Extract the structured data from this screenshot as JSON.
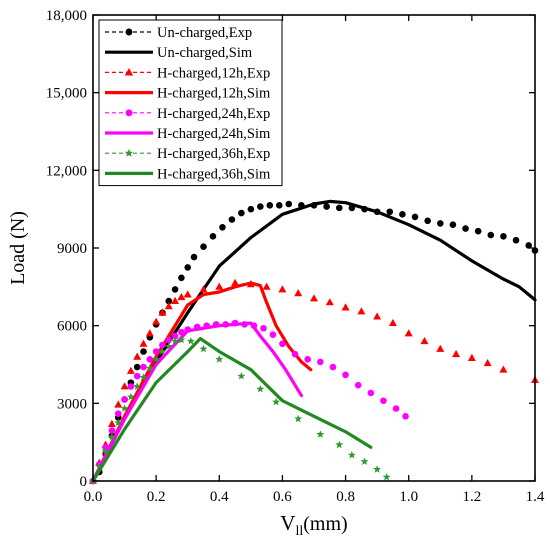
{
  "chart_data": {
    "type": "line",
    "xlabel": "V",
    "xlabel_subscript": "ll",
    "xlabel_unit": "(mm)",
    "ylabel": "Load (N)",
    "xlim": [
      0,
      1.4
    ],
    "ylim": [
      0,
      18000
    ],
    "xticks": [
      0.0,
      0.2,
      0.4,
      0.6,
      0.8,
      1.0,
      1.2,
      1.4
    ],
    "xtick_labels": [
      "0.0",
      "0.2",
      "0.4",
      "0.6",
      "0.8",
      "1.0",
      "1.2",
      "1.4"
    ],
    "yticks": [
      0,
      3000,
      6000,
      9000,
      12000,
      15000,
      18000
    ],
    "ytick_labels": [
      "0",
      "3000",
      "6000",
      "9000",
      "12,000",
      "15,000",
      "18,000"
    ],
    "grid": false,
    "legend_position": "top-left",
    "series": [
      {
        "name": "Un-charged,Exp",
        "kind": "exp",
        "marker": "circle",
        "color": "#000000",
        "points": [
          [
            0.0,
            0
          ],
          [
            0.02,
            350
          ],
          [
            0.04,
            1050
          ],
          [
            0.06,
            1750
          ],
          [
            0.08,
            2450
          ],
          [
            0.1,
            3150
          ],
          [
            0.12,
            3800
          ],
          [
            0.14,
            4400
          ],
          [
            0.16,
            5000
          ],
          [
            0.18,
            5550
          ],
          [
            0.2,
            6050
          ],
          [
            0.22,
            6500
          ],
          [
            0.24,
            6950
          ],
          [
            0.26,
            7400
          ],
          [
            0.28,
            7850
          ],
          [
            0.3,
            8250
          ],
          [
            0.32,
            8650
          ],
          [
            0.35,
            9050
          ],
          [
            0.38,
            9450
          ],
          [
            0.41,
            9800
          ],
          [
            0.44,
            10100
          ],
          [
            0.47,
            10350
          ],
          [
            0.5,
            10500
          ],
          [
            0.53,
            10600
          ],
          [
            0.56,
            10650
          ],
          [
            0.59,
            10650
          ],
          [
            0.62,
            10700
          ],
          [
            0.66,
            10650
          ],
          [
            0.7,
            10650
          ],
          [
            0.74,
            10600
          ],
          [
            0.78,
            10550
          ],
          [
            0.82,
            10550
          ],
          [
            0.86,
            10500
          ],
          [
            0.9,
            10400
          ],
          [
            0.94,
            10400
          ],
          [
            0.98,
            10300
          ],
          [
            1.02,
            10200
          ],
          [
            1.06,
            10050
          ],
          [
            1.1,
            9950
          ],
          [
            1.14,
            9900
          ],
          [
            1.18,
            9750
          ],
          [
            1.22,
            9650
          ],
          [
            1.26,
            9500
          ],
          [
            1.3,
            9450
          ],
          [
            1.34,
            9300
          ],
          [
            1.38,
            9100
          ],
          [
            1.4,
            8900
          ]
        ]
      },
      {
        "name": "Un-charged,Sim",
        "kind": "sim",
        "color": "#000000",
        "points": [
          [
            0.0,
            0
          ],
          [
            0.1,
            2400
          ],
          [
            0.2,
            4600
          ],
          [
            0.3,
            6500
          ],
          [
            0.4,
            8300
          ],
          [
            0.5,
            9400
          ],
          [
            0.6,
            10300
          ],
          [
            0.7,
            10700
          ],
          [
            0.75,
            10800
          ],
          [
            0.8,
            10750
          ],
          [
            0.9,
            10400
          ],
          [
            1.0,
            9900
          ],
          [
            1.1,
            9300
          ],
          [
            1.2,
            8500
          ],
          [
            1.3,
            7800
          ],
          [
            1.35,
            7500
          ],
          [
            1.38,
            7200
          ],
          [
            1.4,
            7000
          ]
        ]
      },
      {
        "name": "H-charged,12h,Exp",
        "kind": "exp",
        "marker": "triangle",
        "color": "#ff0000",
        "points": [
          [
            0.0,
            0
          ],
          [
            0.02,
            700
          ],
          [
            0.04,
            1400
          ],
          [
            0.06,
            2200
          ],
          [
            0.08,
            2950
          ],
          [
            0.1,
            3650
          ],
          [
            0.12,
            4250
          ],
          [
            0.14,
            4800
          ],
          [
            0.16,
            5300
          ],
          [
            0.18,
            5700
          ],
          [
            0.2,
            6150
          ],
          [
            0.22,
            6500
          ],
          [
            0.24,
            6750
          ],
          [
            0.26,
            6950
          ],
          [
            0.28,
            7100
          ],
          [
            0.3,
            7200
          ],
          [
            0.35,
            7400
          ],
          [
            0.4,
            7500
          ],
          [
            0.45,
            7650
          ],
          [
            0.5,
            7600
          ],
          [
            0.55,
            7500
          ],
          [
            0.6,
            7400
          ],
          [
            0.65,
            7250
          ],
          [
            0.7,
            7050
          ],
          [
            0.75,
            6900
          ],
          [
            0.8,
            6700
          ],
          [
            0.85,
            6550
          ],
          [
            0.9,
            6350
          ],
          [
            0.95,
            6100
          ],
          [
            1.0,
            5700
          ],
          [
            1.05,
            5400
          ],
          [
            1.1,
            5100
          ],
          [
            1.15,
            4900
          ],
          [
            1.2,
            4750
          ],
          [
            1.25,
            4550
          ],
          [
            1.3,
            4300
          ],
          [
            1.4,
            3900
          ]
        ]
      },
      {
        "name": "H-charged,12h,Sim",
        "kind": "sim",
        "color": "#ff0000",
        "points": [
          [
            0.0,
            0
          ],
          [
            0.1,
            2500
          ],
          [
            0.2,
            4800
          ],
          [
            0.3,
            6800
          ],
          [
            0.35,
            7200
          ],
          [
            0.4,
            7300
          ],
          [
            0.45,
            7500
          ],
          [
            0.5,
            7650
          ],
          [
            0.53,
            7550
          ],
          [
            0.55,
            6900
          ],
          [
            0.58,
            6000
          ],
          [
            0.62,
            5200
          ],
          [
            0.66,
            4600
          ],
          [
            0.69,
            4300
          ]
        ]
      },
      {
        "name": "H-charged,24h,Exp",
        "kind": "exp",
        "marker": "circle",
        "color": "#ff00ff",
        "points": [
          [
            0.0,
            0
          ],
          [
            0.02,
            650
          ],
          [
            0.04,
            1300
          ],
          [
            0.06,
            1950
          ],
          [
            0.08,
            2600
          ],
          [
            0.1,
            3150
          ],
          [
            0.12,
            3650
          ],
          [
            0.14,
            4050
          ],
          [
            0.16,
            4400
          ],
          [
            0.18,
            4700
          ],
          [
            0.2,
            5000
          ],
          [
            0.22,
            5250
          ],
          [
            0.24,
            5450
          ],
          [
            0.26,
            5600
          ],
          [
            0.28,
            5750
          ],
          [
            0.3,
            5850
          ],
          [
            0.33,
            5950
          ],
          [
            0.36,
            6000
          ],
          [
            0.39,
            6050
          ],
          [
            0.42,
            6050
          ],
          [
            0.45,
            6100
          ],
          [
            0.48,
            6050
          ],
          [
            0.51,
            6000
          ],
          [
            0.54,
            5900
          ],
          [
            0.57,
            5650
          ],
          [
            0.6,
            5300
          ],
          [
            0.64,
            4900
          ],
          [
            0.68,
            4700
          ],
          [
            0.72,
            4600
          ],
          [
            0.76,
            4400
          ],
          [
            0.8,
            4100
          ],
          [
            0.84,
            3700
          ],
          [
            0.88,
            3400
          ],
          [
            0.92,
            3100
          ],
          [
            0.96,
            2800
          ],
          [
            0.99,
            2500
          ]
        ]
      },
      {
        "name": "H-charged,24h,Sim",
        "kind": "sim",
        "color": "#ff00ff",
        "points": [
          [
            0.0,
            0
          ],
          [
            0.1,
            2400
          ],
          [
            0.2,
            4500
          ],
          [
            0.3,
            5800
          ],
          [
            0.35,
            5900
          ],
          [
            0.4,
            6000
          ],
          [
            0.45,
            6050
          ],
          [
            0.5,
            6100
          ],
          [
            0.53,
            5600
          ],
          [
            0.57,
            5000
          ],
          [
            0.61,
            4300
          ],
          [
            0.64,
            3700
          ],
          [
            0.66,
            3300
          ]
        ]
      },
      {
        "name": "H-charged,36h,Exp",
        "kind": "exp",
        "marker": "star",
        "color": "#339933",
        "points": [
          [
            0.0,
            0
          ],
          [
            0.02,
            550
          ],
          [
            0.04,
            1150
          ],
          [
            0.06,
            1700
          ],
          [
            0.08,
            2250
          ],
          [
            0.1,
            2800
          ],
          [
            0.12,
            3250
          ],
          [
            0.14,
            3650
          ],
          [
            0.16,
            4000
          ],
          [
            0.18,
            4350
          ],
          [
            0.2,
            4700
          ],
          [
            0.22,
            5000
          ],
          [
            0.24,
            5200
          ],
          [
            0.26,
            5400
          ],
          [
            0.28,
            5450
          ],
          [
            0.31,
            5400
          ],
          [
            0.35,
            5100
          ],
          [
            0.4,
            4700
          ],
          [
            0.47,
            4050
          ],
          [
            0.53,
            3550
          ],
          [
            0.58,
            3050
          ],
          [
            0.65,
            2400
          ],
          [
            0.72,
            1800
          ],
          [
            0.78,
            1400
          ],
          [
            0.82,
            1000
          ],
          [
            0.86,
            750
          ],
          [
            0.9,
            450
          ],
          [
            0.93,
            150
          ]
        ]
      },
      {
        "name": "H-charged,36h,Sim",
        "kind": "sim",
        "color": "#228822",
        "points": [
          [
            0.0,
            0
          ],
          [
            0.1,
            2000
          ],
          [
            0.2,
            3800
          ],
          [
            0.3,
            5000
          ],
          [
            0.34,
            5500
          ],
          [
            0.4,
            5000
          ],
          [
            0.5,
            4300
          ],
          [
            0.55,
            3700
          ],
          [
            0.6,
            3100
          ],
          [
            0.7,
            2500
          ],
          [
            0.8,
            1900
          ],
          [
            0.88,
            1300
          ]
        ]
      }
    ]
  }
}
